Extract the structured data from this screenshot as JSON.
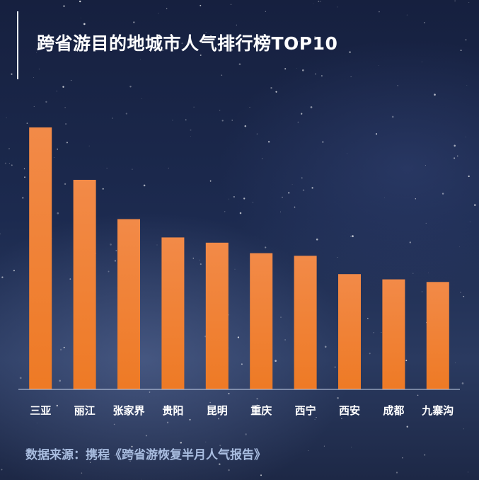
{
  "title": "跨省游目的地城市人气排行榜TOP10",
  "source": "数据来源：携程《跨省游恢复半月人气报告》",
  "colors": {
    "bar_top": "#f28a48",
    "bar_bottom": "#ee7a25",
    "axis": "#c9d4ea"
  },
  "chart_data": {
    "type": "bar",
    "categories": [
      "三亚",
      "丽江",
      "张家界",
      "贵阳",
      "昆明",
      "重庆",
      "西宁",
      "西安",
      "成都",
      "九寨沟"
    ],
    "values": [
      100,
      80,
      65,
      58,
      56,
      52,
      51,
      44,
      42,
      41
    ],
    "ylim": [
      0,
      100
    ],
    "grid": false,
    "legend": "none",
    "title": "跨省游目的地城市人气排行榜TOP10",
    "xlabel": "",
    "ylabel": ""
  }
}
